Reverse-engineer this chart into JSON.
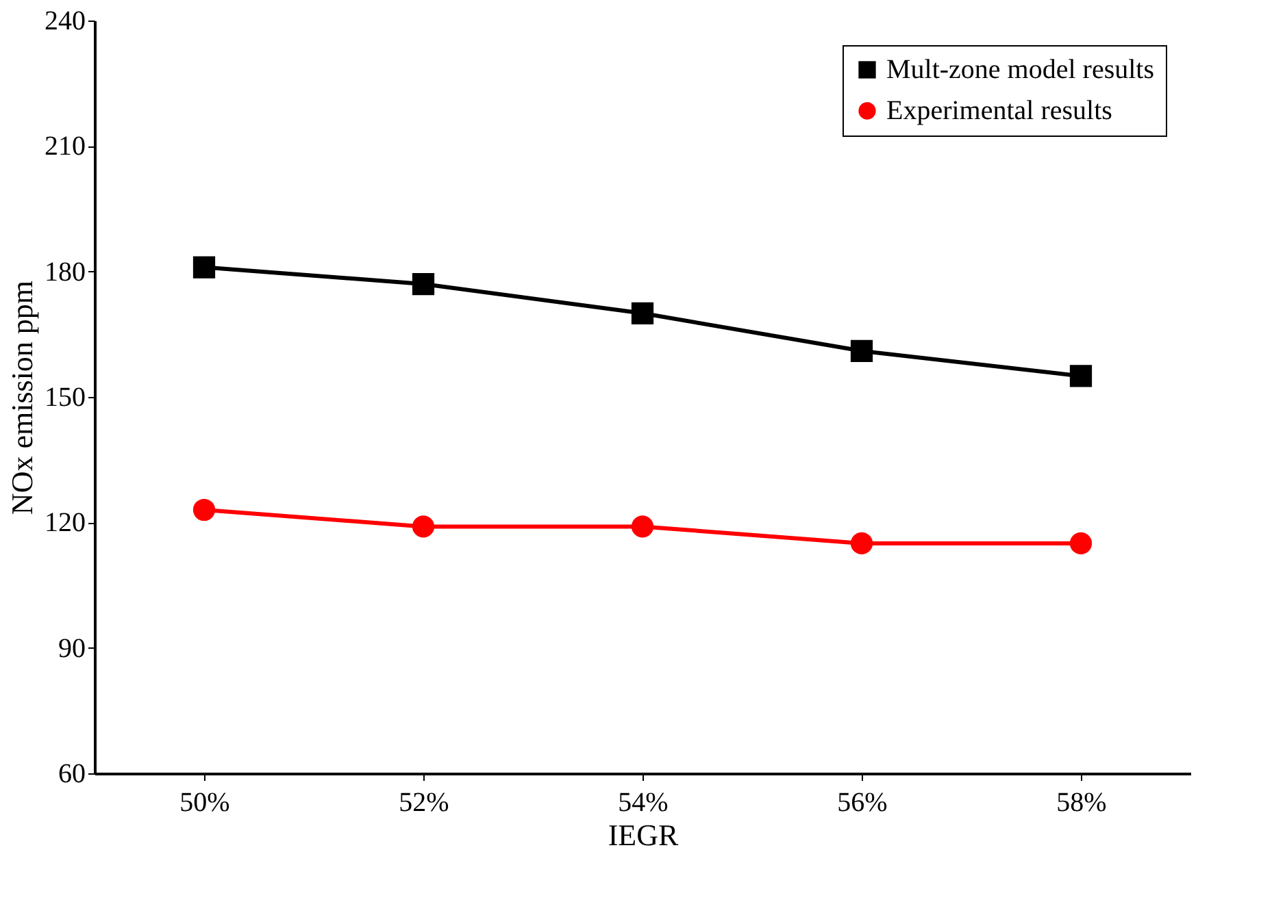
{
  "chart_data": {
    "type": "line",
    "xlabel": "IEGR",
    "ylabel": "NOx emission ppm",
    "categories": [
      "50%",
      "52%",
      "54%",
      "56%",
      "58%"
    ],
    "series": [
      {
        "name": "Mult-zone model results",
        "color": "#000000",
        "marker": "square",
        "values": [
          181,
          177,
          170,
          161,
          155
        ]
      },
      {
        "name": "Experimental results",
        "color": "#ff0000",
        "marker": "circle",
        "values": [
          123,
          119,
          119,
          115,
          115
        ]
      }
    ],
    "ylim": [
      60,
      240
    ],
    "yticks": [
      60,
      90,
      120,
      150,
      180,
      210,
      240
    ],
    "grid": false,
    "legend": "top right",
    "line_style": "solid"
  }
}
